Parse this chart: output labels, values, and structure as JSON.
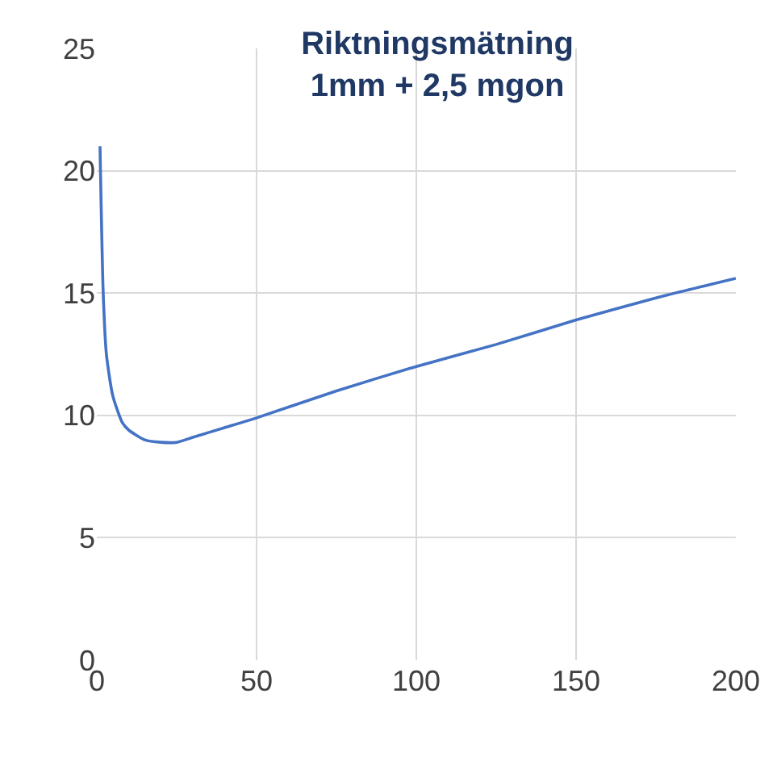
{
  "chart_data": {
    "type": "line",
    "title": "Riktningsmätning\n1mm + 2,5 mgon",
    "x": [
      1,
      2,
      3,
      5,
      8,
      10,
      15,
      20,
      25,
      30,
      40,
      50,
      75,
      100,
      125,
      150,
      175,
      200
    ],
    "series": [
      {
        "color": "#4472c4",
        "values": [
          21,
          15,
          12.5,
          10.8,
          9.7,
          9.4,
          9.0,
          8.9,
          8.9,
          9.1,
          9.5,
          9.9,
          11.0,
          12.0,
          12.9,
          13.9,
          14.8,
          15.6
        ]
      }
    ],
    "xlim": [
      0,
      200
    ],
    "xticks": [
      0,
      50,
      100,
      150,
      200
    ],
    "ylim": [
      0,
      25
    ],
    "yticks": [
      0,
      5,
      10,
      15,
      20,
      25
    ],
    "grid": true,
    "legend": false,
    "marker": "none",
    "line_style": "solid"
  }
}
